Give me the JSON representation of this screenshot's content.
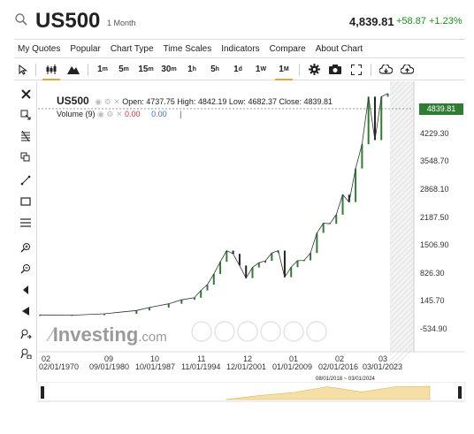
{
  "header": {
    "symbol": "US500",
    "period": "1 Month",
    "last": "4,839.81",
    "change": "+58.87 +1.23%",
    "change_color": "#1a8f1a"
  },
  "menu": [
    "My Quotes",
    "Popular",
    "Chart Type",
    "Time Scales",
    "Indicators",
    "Compare",
    "About Chart"
  ],
  "toolbar": {
    "timeframes": [
      {
        "main": "1",
        "sup": "m"
      },
      {
        "main": "5",
        "sup": "m"
      },
      {
        "main": "15",
        "sup": "m"
      },
      {
        "main": "30",
        "sup": "m"
      },
      {
        "main": "1",
        "sup": "h"
      },
      {
        "main": "5",
        "sup": "h"
      },
      {
        "main": "1",
        "sup": "d"
      },
      {
        "main": "1",
        "sup": "W"
      },
      {
        "main": "1",
        "sup": "M"
      }
    ],
    "active_timeframe": "1M",
    "icons": [
      "cursor-icon",
      "candlestick-icon",
      "mountain-icon",
      "gear-icon",
      "camera-icon",
      "fullscreen-icon",
      "cloud-download-icon",
      "cloud-upload-icon"
    ]
  },
  "left_tools": [
    "close-icon",
    "crosshair-icon",
    "fibonacci-icon",
    "copy-icon",
    "trendline-icon",
    "rectangle-icon",
    "horizontal-lines-icon",
    "zoom-in-icon",
    "zoom-out-icon",
    "magnet-icon",
    "arrow-left-icon",
    "measure-icon",
    "lock-icon"
  ],
  "legend": {
    "symbol": "US500",
    "open_label": "Open:",
    "open": "4737.75",
    "high_label": "High:",
    "high": "4842.19",
    "low_label": "Low:",
    "low": "4682.37",
    "close_label": "Close:",
    "close": "4839.81",
    "volume_label": "Volume (9)",
    "volume_red": "0.00",
    "volume_blue": "0.00"
  },
  "last_price_tag": "4839.81",
  "last_price_color": "#2e7d32",
  "watermark": {
    "brand": "Investing",
    "suffix": ".com"
  },
  "navigator_range": "08/01/2018 ~ 03/01/2024",
  "chart_data": {
    "type": "line",
    "title": "",
    "y_ticks": [
      "4229.30",
      "3548.70",
      "2868.10",
      "2187.50",
      "1506.90",
      "826.30",
      "145.70",
      "-534.90"
    ],
    "ylim": [
      -700,
      5100
    ],
    "x_top_ticks": [
      "02",
      "09",
      "10",
      "11",
      "12",
      "01",
      "02",
      "03"
    ],
    "x_bottom_ticks": [
      "02/01/1970",
      "09/01/1980",
      "10/01/1987",
      "11/01/1994",
      "12/01/2001",
      "01/01/2009",
      "02/01/2016",
      "03/01/2023"
    ],
    "series": [
      {
        "x": [
          1970,
          1975,
          1980,
          1985,
          1987,
          1990,
          1992,
          1994,
          1995,
          1996,
          1997,
          1998,
          1999,
          2000,
          2001,
          2002,
          2003,
          2004,
          2005,
          2006,
          2007,
          2008,
          2009,
          2010,
          2011,
          2012,
          2013,
          2014,
          2015,
          2016,
          2017,
          2018,
          2019,
          2020,
          2021,
          2022,
          2023,
          2024
        ],
        "values": [
          90,
          85,
          115,
          185,
          250,
          330,
          415,
          460,
          615,
          740,
          970,
          1230,
          1470,
          1400,
          1150,
          880,
          1110,
          1210,
          1250,
          1420,
          1470,
          900,
          1115,
          1255,
          1260,
          1420,
          1850,
          2060,
          2045,
          2240,
          2670,
          2510,
          3230,
          3750,
          4770,
          3840,
          4770,
          4840
        ]
      }
    ],
    "grid": false
  }
}
